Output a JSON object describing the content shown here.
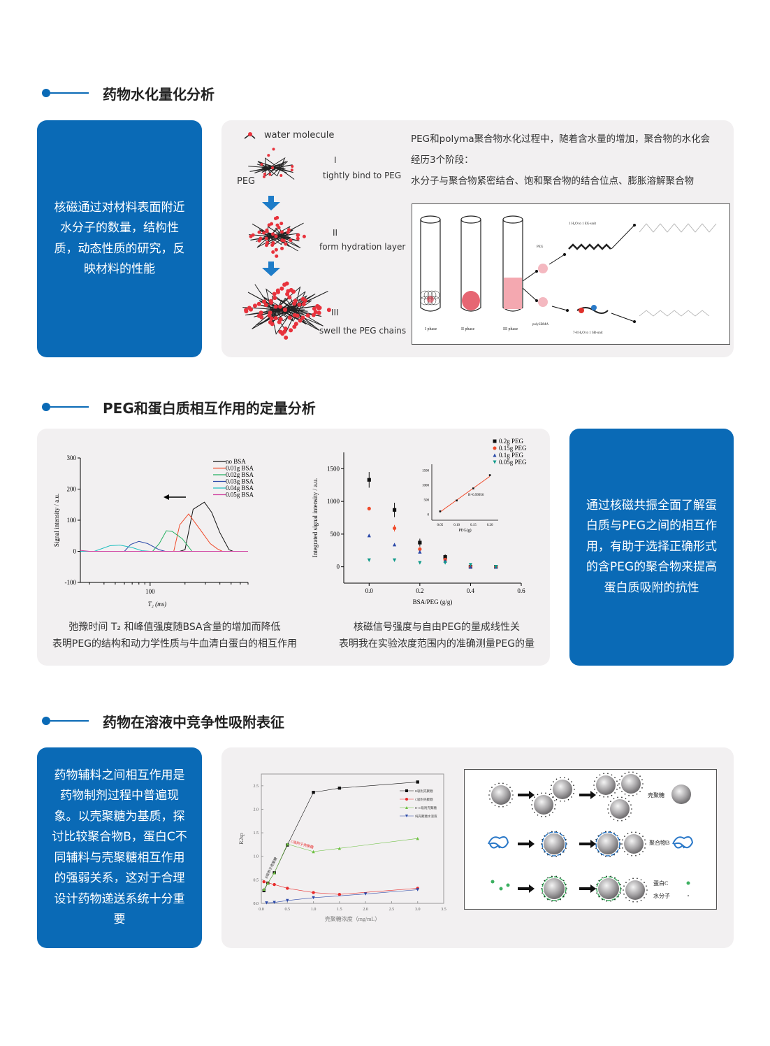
{
  "colors": {
    "accent": "#0a6ab6",
    "panel": "#f2f0f1"
  },
  "section1": {
    "title": "药物水化量化分析",
    "blue_text": "核磁通过对材料表面附近水分子的数量，结构性质，动态性质的研究，反映材料的性能",
    "legend": "water molecule",
    "peg_label": "PEG",
    "stages": [
      {
        "num": "I",
        "label": "tightly bind to PEG"
      },
      {
        "num": "II",
        "label": "form hydration layer"
      },
      {
        "num": "III",
        "label": "swell the PEG chains"
      }
    ],
    "desc_line1": "PEG和polyma聚合物水化过程中，随着含水量的增加，聚合物的水化会",
    "desc_line2": "经历3个阶段：",
    "desc_line3": "水分子与聚合物紧密结合、饱和聚合物的结合位点、膨胀溶解聚合物",
    "diagram": {
      "phases": [
        "I phase",
        "II phase",
        "III phase"
      ],
      "peg": "PEG",
      "polysbma": "polySBMA",
      "eg_ratio": "1 H₂O to 1 EG-unit",
      "sb_ratio": "7-8 H₂O to 1 SB-unit"
    }
  },
  "section2": {
    "title": "PEG和蛋白质相互作用的定量分析",
    "blue_text": "通过核磁共振全面了解蛋白质与PEG之间的相互作用，有助于选择正确形式的含PEG的聚合物来提高蛋白质吸附的抗性",
    "caption_left": [
      "弛豫时间 T₂ 和峰值强度随BSA含量的增加而降低",
      "表明PEG的结构和动力学性质与牛血清白蛋白的相互作用"
    ],
    "caption_right": [
      "核磁信号强度与自由PEG的量成线性关",
      "表明我在实验浓度范围内的准确测量PEG的量"
    ]
  },
  "section3": {
    "title": "药物在溶液中竞争性吸附表征",
    "blue_text": "药物辅料之间相互作用是药物制剂过程中普遍现象。以壳聚糖为基质，探讨比较聚合物B，蛋白C不同辅料与壳聚糖相互作用的强弱关系，这对于合理设计药物递送系统十分重要",
    "diagram": {
      "chitosan": "壳聚糖",
      "polymer_b": "聚合物B",
      "protein_c": "蛋白C",
      "water": "水分子"
    }
  },
  "chart_data": [
    {
      "type": "line",
      "xlabel": "T₂ (ms)",
      "ylabel": "Signal intensity / a.u.",
      "xscale": "log",
      "xlim": [
        25,
        700
      ],
      "ylim": [
        -100,
        300
      ],
      "xticks": [
        100
      ],
      "yticks": [
        -100,
        0,
        100,
        200,
        300
      ],
      "legend": "top-right",
      "series": [
        {
          "name": "no BSA",
          "color": "#111111",
          "points": [
            [
              180,
              0
            ],
            [
              200,
              5
            ],
            [
              235,
              135
            ],
            [
              294,
              158
            ],
            [
              340,
              125
            ],
            [
              400,
              60
            ],
            [
              480,
              5
            ],
            [
              520,
              0
            ]
          ]
        },
        {
          "name": "0.01g BSA",
          "color": "#f04a2a",
          "points": [
            [
              160,
              0
            ],
            [
              180,
              85
            ],
            [
              215,
              120
            ],
            [
              270,
              70
            ],
            [
              330,
              25
            ],
            [
              380,
              8
            ],
            [
              420,
              0
            ]
          ]
        },
        {
          "name": "0.02g BSA",
          "color": "#22b060",
          "points": [
            [
              105,
              0
            ],
            [
              120,
              25
            ],
            [
              138,
              66
            ],
            [
              155,
              64
            ],
            [
              190,
              40
            ],
            [
              230,
              0
            ]
          ]
        },
        {
          "name": "0.03g BSA",
          "color": "#2a48a8",
          "points": [
            [
              60,
              0
            ],
            [
              68,
              22
            ],
            [
              80,
              32
            ],
            [
              95,
              25
            ],
            [
              120,
              5
            ],
            [
              135,
              0
            ]
          ]
        },
        {
          "name": "0.04g BSA",
          "color": "#20c0c0",
          "points": [
            [
              25,
              0
            ],
            [
              33,
              0
            ],
            [
              45,
              18
            ],
            [
              55,
              20
            ],
            [
              70,
              12
            ],
            [
              85,
              2
            ],
            [
              100,
              0
            ]
          ]
        },
        {
          "name": "0.05g BSA",
          "color": "#d040a0",
          "points": [
            [
              25,
              3
            ],
            [
              30,
              0
            ],
            [
              700,
              0
            ]
          ]
        }
      ]
    },
    {
      "type": "scatter",
      "xlabel": "BSA/PEG (g/g)",
      "ylabel": "Integrated signal intensity / a.u.",
      "xlim": [
        -0.1,
        0.6
      ],
      "ylim": [
        -250,
        1750
      ],
      "xticks": [
        0.0,
        0.2,
        0.4,
        0.6
      ],
      "yticks": [
        0,
        500,
        1000,
        1500
      ],
      "legend": "top-right",
      "x": [
        0,
        0.1,
        0.2,
        0.3,
        0.4,
        0.5
      ],
      "series": [
        {
          "name": "0.2g  PEG",
          "color": "#111111",
          "marker": "square",
          "values": [
            1330,
            870,
            370,
            150,
            0,
            0
          ],
          "err": [
            120,
            110,
            60,
            40,
            0,
            0
          ]
        },
        {
          "name": "0.15g PEG",
          "color": "#f04a2a",
          "marker": "circle",
          "values": [
            890,
            590,
            270,
            110,
            0,
            0
          ],
          "err": [
            25,
            50,
            30,
            20,
            0,
            0
          ]
        },
        {
          "name": "0.1g  PEG",
          "color": "#2a48a8",
          "marker": "triangle-up",
          "values": [
            480,
            340,
            230,
            90,
            0,
            0
          ],
          "err": [
            15,
            10,
            10,
            10,
            0,
            0
          ]
        },
        {
          "name": "0.05g PEG",
          "color": "#109a8a",
          "marker": "triangle-down",
          "values": [
            100,
            100,
            60,
            60,
            30,
            0
          ],
          "err": [
            0,
            0,
            0,
            0,
            0,
            0
          ]
        }
      ],
      "inset": {
        "xlabel": "PEG(g)",
        "xlim": [
          0.025,
          0.225
        ],
        "ylim": [
          -200,
          1700
        ],
        "xticks": [
          "0.05",
          "0.10",
          "0.15",
          "0.20"
        ],
        "yticks": [
          0,
          500,
          1000,
          1500
        ],
        "x": [
          0.05,
          0.1,
          0.15,
          0.2
        ],
        "values": [
          100,
          470,
          880,
          1330
        ],
        "fit_color": "#f04a2a",
        "annotation": "R=0.99956"
      }
    },
    {
      "type": "line",
      "xlabel": "壳聚糖浓度（mg/mL）",
      "ylabel": "R2sp",
      "xlim": [
        0,
        3.5
      ],
      "ylim": [
        0,
        2.75
      ],
      "xticks": [
        "0.0",
        "0.5",
        "1.0",
        "1.5",
        "2.0",
        "2.5",
        "3.0",
        "3.5"
      ],
      "yticks": [
        "0.0",
        "0.5",
        "1.0",
        "1.5",
        "2.0",
        "2.5"
      ],
      "legend": "top-right",
      "annotations": [
        "B吸附于壳聚糖",
        "C吸附于壳聚糖"
      ],
      "series": [
        {
          "name": "B吸附壳聚糖",
          "color": "#111111",
          "marker": "square",
          "points": [
            [
              0.05,
              0.27
            ],
            [
              0.125,
              0.43
            ],
            [
              0.25,
              0.65
            ],
            [
              0.5,
              1.24
            ],
            [
              1,
              2.36
            ],
            [
              1.5,
              2.45
            ],
            [
              3,
              2.58
            ]
          ]
        },
        {
          "name": "C吸附壳聚糖",
          "color": "#e82a2a",
          "marker": "circle",
          "points": [
            [
              0.05,
              0.46
            ],
            [
              0.25,
              0.4
            ],
            [
              0.5,
              0.32
            ],
            [
              1,
              0.23
            ],
            [
              1.5,
              0.19
            ],
            [
              3,
              0.32
            ]
          ]
        },
        {
          "name": "B+C吸附壳聚糖",
          "color": "#6cc040",
          "marker": "triangle-up",
          "points": [
            [
              0.05,
              0.3
            ],
            [
              0.125,
              0.43
            ],
            [
              0.25,
              0.65
            ],
            [
              0.5,
              1.26
            ],
            [
              1,
              1.1
            ],
            [
              1.5,
              1.17
            ],
            [
              3,
              1.38
            ]
          ]
        },
        {
          "name": "纯壳聚糖水溶液",
          "color": "#2a48a8",
          "marker": "triangle-down",
          "points": [
            [
              0.1,
              0.01
            ],
            [
              0.25,
              0.02
            ],
            [
              0.5,
              0.06
            ],
            [
              1,
              0.12
            ],
            [
              2,
              0.2
            ],
            [
              3,
              0.29
            ]
          ]
        }
      ]
    }
  ]
}
